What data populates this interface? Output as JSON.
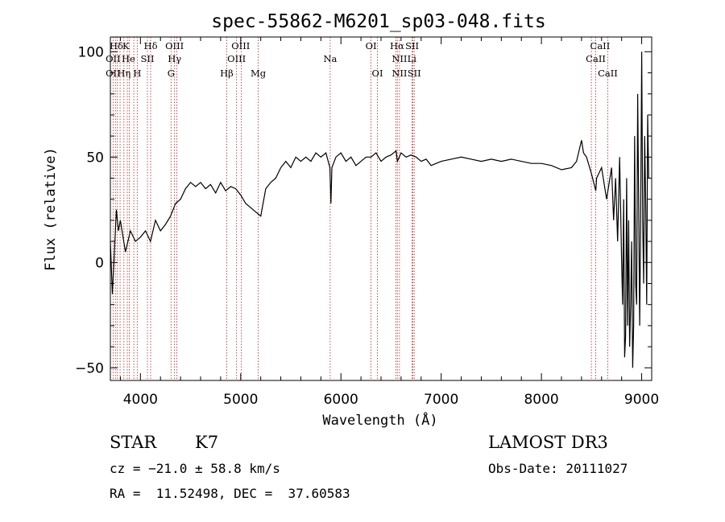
{
  "chart_data": {
    "type": "line",
    "title": "spec-55862-M6201_sp03-048.fits",
    "xlabel": "Wavelength (Å)",
    "ylabel": "Flux (relative)",
    "xlim": [
      3700,
      9100
    ],
    "ylim": [
      -56,
      107
    ],
    "xticks": [
      4000,
      5000,
      6000,
      7000,
      8000,
      9000
    ],
    "yticks": [
      -50,
      0,
      50,
      100
    ],
    "grid": false,
    "legend": "none",
    "series": [
      {
        "name": "flux",
        "x": [
          3700,
          3720,
          3740,
          3760,
          3780,
          3800,
          3850,
          3900,
          3950,
          4000,
          4050,
          4100,
          4150,
          4200,
          4250,
          4300,
          4350,
          4400,
          4450,
          4500,
          4550,
          4600,
          4650,
          4700,
          4750,
          4800,
          4850,
          4900,
          4950,
          5000,
          5050,
          5100,
          5150,
          5200,
          5250,
          5300,
          5350,
          5400,
          5450,
          5500,
          5550,
          5600,
          5650,
          5700,
          5750,
          5800,
          5850,
          5890,
          5900,
          5910,
          5950,
          6000,
          6050,
          6100,
          6150,
          6200,
          6250,
          6300,
          6350,
          6400,
          6450,
          6500,
          6550,
          6563,
          6600,
          6650,
          6700,
          6750,
          6800,
          6850,
          6900,
          6950,
          7000,
          7100,
          7200,
          7300,
          7400,
          7500,
          7600,
          7700,
          7800,
          7900,
          8000,
          8100,
          8200,
          8300,
          8350,
          8400,
          8420,
          8450,
          8500,
          8542,
          8550,
          8600,
          8650,
          8700,
          8720,
          8740,
          8760,
          8780,
          8800,
          8810,
          8820,
          8830,
          8840,
          8850,
          8860,
          8870,
          8880,
          8890,
          8900,
          8910,
          8920,
          8930,
          8940,
          8950,
          8960,
          8970,
          8980,
          8990,
          9000,
          9010,
          9020,
          9030,
          9040,
          9050,
          9060,
          9070
        ],
        "y": [
          10,
          -15,
          5,
          25,
          15,
          20,
          5,
          15,
          10,
          12,
          15,
          10,
          20,
          15,
          18,
          22,
          28,
          30,
          35,
          38,
          36,
          38,
          35,
          37,
          33,
          38,
          34,
          36,
          35,
          32,
          28,
          26,
          24,
          22,
          35,
          38,
          40,
          45,
          48,
          45,
          50,
          48,
          50,
          48,
          52,
          50,
          52,
          45,
          28,
          45,
          50,
          52,
          48,
          50,
          46,
          48,
          50,
          50,
          52,
          48,
          50,
          51,
          53,
          48,
          52,
          50,
          51,
          50,
          48,
          49,
          46,
          47,
          48,
          49,
          50,
          49,
          48,
          49,
          48,
          49,
          48,
          47,
          47,
          46,
          44,
          45,
          48,
          58,
          52,
          50,
          42,
          34,
          40,
          45,
          30,
          45,
          20,
          40,
          10,
          50,
          0,
          -20,
          30,
          -45,
          -35,
          40,
          -30,
          20,
          -40,
          -20,
          10,
          -50,
          -30,
          60,
          -10,
          -20,
          80,
          30,
          -30,
          20,
          100,
          20,
          -10,
          60,
          30,
          -20,
          70,
          40
        ]
      }
    ],
    "spectral_lines": [
      {
        "label": "Hδ",
        "x": 3760,
        "row": 1
      },
      {
        "label": "K",
        "x": 3855,
        "row": 1
      },
      {
        "label": "Hδ",
        "x": 4102,
        "row": 1
      },
      {
        "label": "OIII",
        "x": 4340,
        "row": 1
      },
      {
        "label": "OIII",
        "x": 5000,
        "row": 1
      },
      {
        "label": "OI",
        "x": 6300,
        "row": 1
      },
      {
        "label": "Hα",
        "x": 6560,
        "row": 1
      },
      {
        "label": "SII",
        "x": 6710,
        "row": 1
      },
      {
        "label": "CaII",
        "x": 8585,
        "row": 1
      },
      {
        "label": "OII",
        "x": 3727,
        "row": 2
      },
      {
        "label": "He",
        "x": 3880,
        "row": 2
      },
      {
        "label": "SII",
        "x": 4070,
        "row": 2
      },
      {
        "label": "Hγ",
        "x": 4340,
        "row": 2
      },
      {
        "label": "OIII",
        "x": 4959,
        "row": 2
      },
      {
        "label": "Na",
        "x": 5893,
        "row": 2
      },
      {
        "label": "NII",
        "x": 6584,
        "row": 2
      },
      {
        "label": "Li",
        "x": 6708,
        "row": 2
      },
      {
        "label": "CaII",
        "x": 8542,
        "row": 2
      },
      {
        "label": "OII",
        "x": 3727,
        "row": 3
      },
      {
        "label": "Hη",
        "x": 3835,
        "row": 3
      },
      {
        "label": "H",
        "x": 3968,
        "row": 3
      },
      {
        "label": "G",
        "x": 4305,
        "row": 3
      },
      {
        "label": "Hβ",
        "x": 4861,
        "row": 3
      },
      {
        "label": "Mg",
        "x": 5175,
        "row": 3
      },
      {
        "label": "OI",
        "x": 6364,
        "row": 3
      },
      {
        "label": "NII",
        "x": 6584,
        "row": 3
      },
      {
        "label": "SII",
        "x": 6731,
        "row": 3
      },
      {
        "label": "CaII",
        "x": 8662,
        "row": 3
      }
    ],
    "line_markers": [
      3727,
      3750,
      3770,
      3797,
      3835,
      3869,
      3889,
      3934,
      3968,
      4070,
      4102,
      4305,
      4340,
      4363,
      4861,
      4959,
      5007,
      5175,
      5893,
      6300,
      6364,
      6548,
      6563,
      6584,
      6708,
      6717,
      6731,
      8498,
      8542,
      8662
    ]
  },
  "info": {
    "object_type": "STAR",
    "subclass": "K7",
    "survey": "LAMOST DR3",
    "cz": "cz = −21.0 ± 58.8 km/s",
    "obs_date": "Obs-Date: 20111027",
    "coords": "RA =  11.52498, DEC =  37.60583"
  },
  "colors": {
    "spectrum": "#000000",
    "marker": "#b22222"
  }
}
